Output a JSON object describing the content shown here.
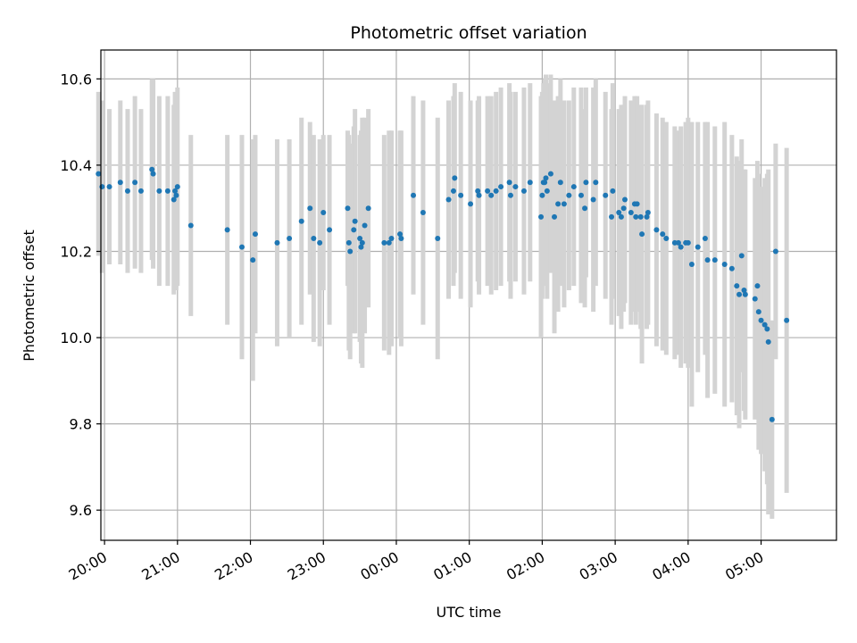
{
  "chart_data": {
    "type": "scatter",
    "title": "Photometric offset variation",
    "xlabel": "UTC time",
    "ylabel": "Photometric offset",
    "x_axis_kind": "time",
    "x_tick_labels": [
      "20:00",
      "21:00",
      "22:00",
      "23:00",
      "00:00",
      "01:00",
      "02:00",
      "03:00",
      "04:00",
      "05:00"
    ],
    "y_ticks": [
      9.6,
      9.8,
      10.0,
      10.2,
      10.4,
      10.6
    ],
    "xlim": [
      "19:57",
      "06:02"
    ],
    "ylim": [
      9.53,
      10.667
    ],
    "grid": true,
    "colors": {
      "point": "#1f77b4",
      "errorbar": "#d3d3d3",
      "grid": "#b0b0b0"
    },
    "series": [
      {
        "x": [
          "19:55",
          "19:58",
          "20:04",
          "20:13",
          "20:19",
          "20:25",
          "20:30",
          "20:39",
          "20:40",
          "20:45",
          "20:52",
          "20:57",
          "20:58",
          "20:59",
          "21:00",
          "21:11",
          "21:41",
          "21:53",
          "22:02",
          "22:04",
          "22:22",
          "22:32",
          "22:42",
          "22:49",
          "22:52",
          "22:57",
          "23:00",
          "23:05",
          "23:20",
          "23:21",
          "23:22",
          "23:25",
          "23:26",
          "23:30",
          "23:31",
          "23:32",
          "23:34",
          "23:37",
          "23:50",
          "23:54",
          "23:56",
          "00:03",
          "00:04",
          "00:14",
          "00:22",
          "00:34",
          "00:43",
          "00:47",
          "00:48",
          "00:53",
          "01:01",
          "01:07",
          "01:08",
          "01:15",
          "01:18",
          "01:22",
          "01:26",
          "01:33",
          "01:34",
          "01:38",
          "01:45",
          "01:50",
          "01:59",
          "02:00",
          "02:01",
          "02:02",
          "02:03",
          "02:04",
          "02:07",
          "02:10",
          "02:13",
          "02:15",
          "02:18",
          "02:22",
          "02:26",
          "02:32",
          "02:35",
          "02:36",
          "02:42",
          "02:44",
          "02:52",
          "02:57",
          "02:58",
          "03:03",
          "03:05",
          "03:07",
          "03:08",
          "03:13",
          "03:16",
          "03:17",
          "03:18",
          "03:21",
          "03:22",
          "03:26",
          "03:27",
          "03:34",
          "03:39",
          "03:42",
          "03:49",
          "03:52",
          "03:54",
          "03:58",
          "04:00",
          "04:03",
          "04:08",
          "04:14",
          "04:16",
          "04:22",
          "04:30",
          "04:36",
          "04:40",
          "04:42",
          "04:44",
          "04:46",
          "04:47",
          "04:55",
          "04:57",
          "04:58",
          "05:00",
          "05:03",
          "05:05",
          "05:06",
          "05:09",
          "05:12",
          "05:21"
        ],
        "y": [
          10.38,
          10.35,
          10.35,
          10.36,
          10.34,
          10.36,
          10.34,
          10.39,
          10.38,
          10.34,
          10.34,
          10.32,
          10.34,
          10.33,
          10.35,
          10.26,
          10.25,
          10.21,
          10.18,
          10.24,
          10.22,
          10.23,
          10.27,
          10.3,
          10.23,
          10.22,
          10.29,
          10.25,
          10.3,
          10.22,
          10.2,
          10.25,
          10.27,
          10.23,
          10.21,
          10.22,
          10.26,
          10.3,
          10.22,
          10.22,
          10.23,
          10.24,
          10.23,
          10.33,
          10.29,
          10.23,
          10.32,
          10.34,
          10.37,
          10.33,
          10.31,
          10.34,
          10.33,
          10.34,
          10.33,
          10.34,
          10.35,
          10.36,
          10.33,
          10.35,
          10.34,
          10.36,
          10.28,
          10.33,
          10.36,
          10.36,
          10.37,
          10.34,
          10.38,
          10.28,
          10.31,
          10.36,
          10.31,
          10.33,
          10.35,
          10.33,
          10.3,
          10.36,
          10.32,
          10.36,
          10.33,
          10.28,
          10.34,
          10.29,
          10.28,
          10.3,
          10.32,
          10.29,
          10.31,
          10.28,
          10.31,
          10.28,
          10.24,
          10.28,
          10.29,
          10.25,
          10.24,
          10.23,
          10.22,
          10.22,
          10.21,
          10.22,
          10.22,
          10.17,
          10.21,
          10.23,
          10.18,
          10.18,
          10.17,
          10.16,
          10.12,
          10.1,
          10.19,
          10.11,
          10.1,
          10.09,
          10.12,
          10.06,
          10.04,
          10.03,
          10.02,
          9.99,
          9.81,
          10.2,
          10.04
        ],
        "err": [
          0.19,
          0.2,
          0.18,
          0.19,
          0.19,
          0.2,
          0.19,
          0.21,
          0.22,
          0.22,
          0.22,
          0.22,
          0.23,
          0.22,
          0.23,
          0.21,
          0.22,
          0.26,
          0.28,
          0.23,
          0.24,
          0.23,
          0.24,
          0.2,
          0.24,
          0.24,
          0.18,
          0.22,
          0.18,
          0.25,
          0.25,
          0.24,
          0.26,
          0.24,
          0.27,
          0.29,
          0.25,
          0.23,
          0.25,
          0.26,
          0.25,
          0.24,
          0.25,
          0.23,
          0.26,
          0.28,
          0.23,
          0.22,
          0.22,
          0.24,
          0.24,
          0.21,
          0.23,
          0.22,
          0.23,
          0.23,
          0.23,
          0.23,
          0.24,
          0.22,
          0.24,
          0.23,
          0.28,
          0.24,
          0.23,
          0.24,
          0.24,
          0.25,
          0.23,
          0.27,
          0.25,
          0.24,
          0.24,
          0.22,
          0.23,
          0.25,
          0.23,
          0.22,
          0.26,
          0.24,
          0.24,
          0.25,
          0.25,
          0.24,
          0.26,
          0.24,
          0.24,
          0.26,
          0.25,
          0.25,
          0.25,
          0.26,
          0.3,
          0.26,
          0.26,
          0.27,
          0.27,
          0.27,
          0.27,
          0.26,
          0.28,
          0.28,
          0.29,
          0.33,
          0.29,
          0.27,
          0.32,
          0.31,
          0.33,
          0.31,
          0.3,
          0.31,
          0.27,
          0.28,
          0.29,
          0.28,
          0.29,
          0.32,
          0.31,
          0.34,
          0.36,
          0.4,
          0.23,
          0.25,
          0.4
        ]
      }
    ]
  }
}
